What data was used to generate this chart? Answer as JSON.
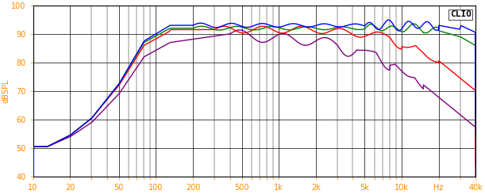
{
  "title": "CLIO",
  "ylabel": "dBSPL",
  "xlabel": "Hz",
  "xlim": [
    10,
    40000
  ],
  "ylim": [
    40,
    100
  ],
  "yticks": [
    40,
    50,
    60,
    70,
    80,
    90,
    100
  ],
  "xtick_labels": [
    "10",
    "20",
    "50",
    "100",
    "200",
    "500",
    "1k",
    "2k",
    "5k",
    "10k",
    "Hz",
    "40k"
  ],
  "xtick_values": [
    10,
    20,
    50,
    100,
    200,
    500,
    1000,
    2000,
    5000,
    10000,
    20000,
    40000
  ],
  "background_color": "#ffffff",
  "plot_bg_color": "#ffffff",
  "grid_color": "#000000",
  "line_colors_order": [
    "blue",
    "green",
    "red",
    "purple"
  ],
  "line_colors": [
    "#0000ff",
    "#008000",
    "#ff0000",
    "#800080"
  ],
  "line_width": 1.0,
  "tick_color": "#ff8800",
  "label_color": "#ff8800"
}
